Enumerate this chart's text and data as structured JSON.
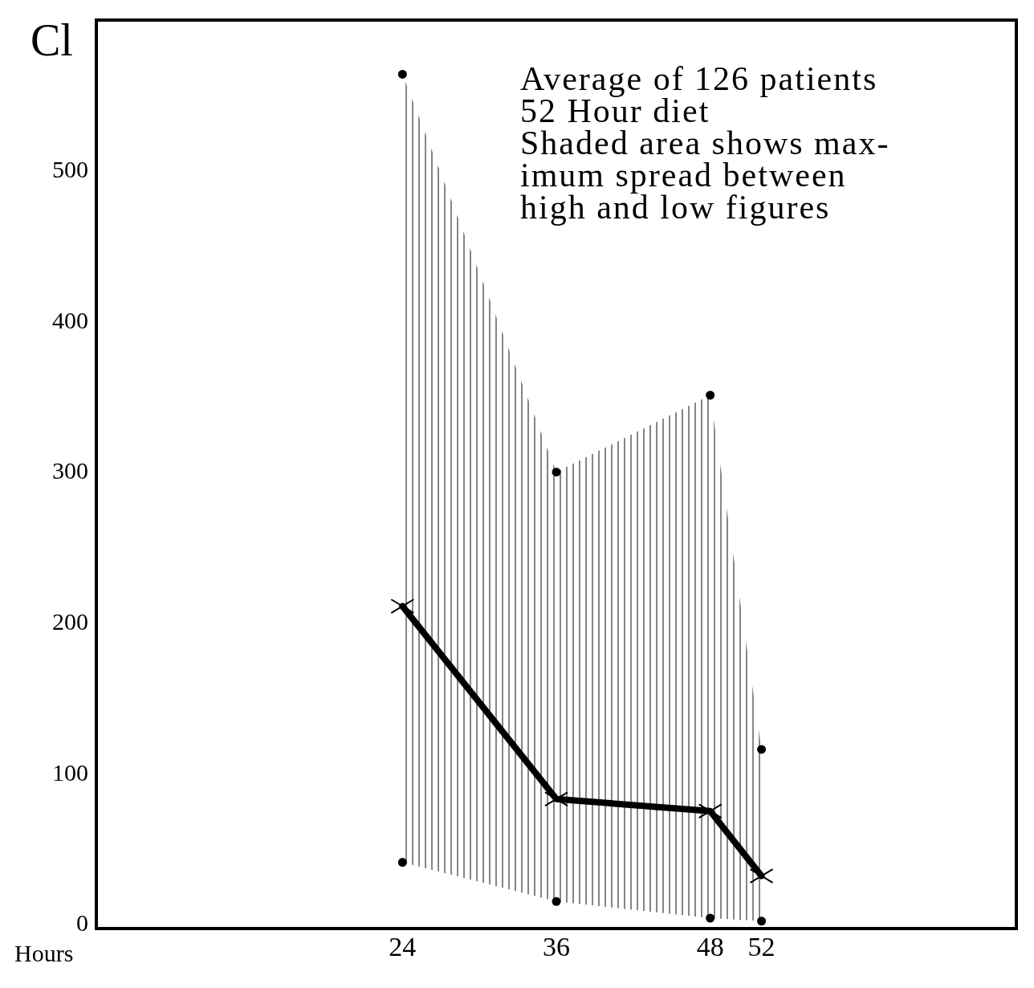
{
  "chart_data": {
    "type": "line",
    "ylabel": "Cl",
    "xlabel": "Hours",
    "annotations": [
      "Average of 126 patients",
      "52 Hour diet",
      "Shaded area shows max-",
      "imum spread between",
      "high and low figures"
    ],
    "x": [
      24,
      36,
      48,
      52
    ],
    "series": [
      {
        "color": "#000000",
        "values": [
          210,
          82,
          74,
          31
        ],
        "lower": [
          40,
          14,
          3,
          1
        ],
        "upper": [
          563,
          299,
          350,
          115
        ],
        "marker": "cross"
      },
      {
        "type": "scatter",
        "color": "#000000",
        "values": [
          563,
          299,
          350,
          115
        ],
        "marker": "circle"
      },
      {
        "type": "scatter",
        "color": "#000000",
        "values": [
          40,
          14,
          3,
          1
        ],
        "marker": "circle"
      }
    ],
    "xlim": [
      0,
      72
    ],
    "xticks": [
      24,
      36,
      48,
      52
    ],
    "ylim": [
      -5,
      600
    ],
    "yticks": [
      0,
      100,
      200,
      300,
      400,
      500
    ]
  }
}
